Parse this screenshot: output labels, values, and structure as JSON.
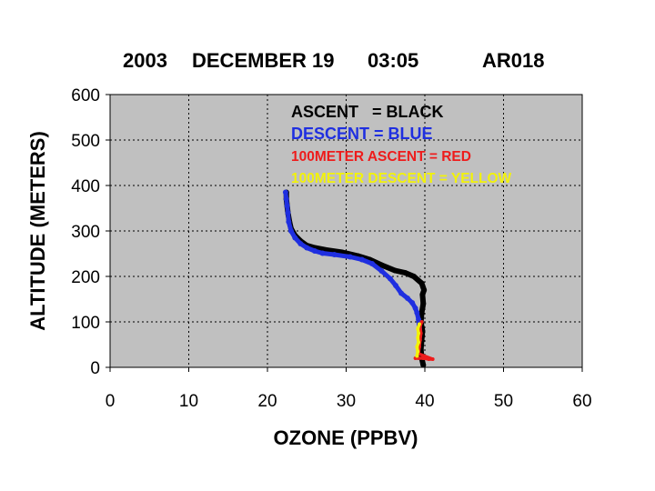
{
  "chart_data": {
    "type": "scatter",
    "title": {
      "year": "2003",
      "date": "DECEMBER 19",
      "time": "03:05",
      "id": "AR018"
    },
    "xlabel": "OZONE (PPBV)",
    "ylabel": "ALTITUDE (METERS)",
    "xlim": [
      0,
      60
    ],
    "ylim": [
      0,
      600
    ],
    "x_ticks": [
      "0",
      "10",
      "20",
      "30",
      "40",
      "50",
      "60"
    ],
    "y_ticks": [
      "0",
      "100",
      "200",
      "300",
      "400",
      "500",
      "600"
    ],
    "grid": true,
    "background": "#c0c0c0",
    "legend": [
      {
        "text": "ASCENT   = BLACK",
        "color": "#000000"
      },
      {
        "text": "DESCENT = BLUE",
        "color": "#1f2fe0"
      },
      {
        "text": "100METER ASCENT = RED",
        "color": "#ee1c1c"
      },
      {
        "text": "100METER DESCENT = YELLOW",
        "color": "#f2f20a"
      }
    ],
    "series": [
      {
        "color": "#000000",
        "points": [
          [
            39.8,
            5
          ],
          [
            39.6,
            20
          ],
          [
            39.5,
            40
          ],
          [
            39.6,
            60
          ],
          [
            39.7,
            80
          ],
          [
            39.5,
            100
          ],
          [
            39.6,
            120
          ],
          [
            39.8,
            140
          ],
          [
            39.7,
            160
          ],
          [
            39.9,
            170
          ],
          [
            39.6,
            185
          ],
          [
            38.6,
            200
          ],
          [
            37.5,
            208
          ],
          [
            36.2,
            213
          ],
          [
            34.5,
            225
          ],
          [
            33.0,
            237
          ],
          [
            31.5,
            245
          ],
          [
            29.5,
            253
          ],
          [
            27.5,
            258
          ],
          [
            26.0,
            263
          ],
          [
            25.0,
            268
          ],
          [
            24.2,
            278
          ],
          [
            23.5,
            290
          ],
          [
            23.0,
            305
          ],
          [
            22.8,
            320
          ],
          [
            22.6,
            340
          ],
          [
            22.5,
            355
          ],
          [
            22.4,
            370
          ],
          [
            22.4,
            385
          ]
        ]
      },
      {
        "color": "#1f2fe0",
        "points": [
          [
            39.3,
            85
          ],
          [
            39.2,
            105
          ],
          [
            39.0,
            120
          ],
          [
            38.8,
            130
          ],
          [
            38.4,
            142
          ],
          [
            37.8,
            152
          ],
          [
            37.0,
            163
          ],
          [
            36.3,
            180
          ],
          [
            35.6,
            195
          ],
          [
            34.5,
            212
          ],
          [
            33.3,
            228
          ],
          [
            32.0,
            237
          ],
          [
            30.5,
            243
          ],
          [
            28.5,
            248
          ],
          [
            27.0,
            251
          ],
          [
            26.0,
            256
          ],
          [
            25.0,
            263
          ],
          [
            24.2,
            272
          ],
          [
            23.5,
            285
          ],
          [
            23.0,
            300
          ],
          [
            22.7,
            320
          ],
          [
            22.6,
            340
          ],
          [
            22.5,
            355
          ],
          [
            22.4,
            370
          ],
          [
            22.3,
            385
          ]
        ]
      },
      {
        "color": "#ee1c1c",
        "points": [
          [
            38.8,
            20
          ],
          [
            39.2,
            20
          ],
          [
            39.8,
            20
          ],
          [
            40.5,
            18
          ],
          [
            41.0,
            18
          ],
          [
            39.2,
            30
          ],
          [
            39.3,
            45
          ],
          [
            39.4,
            60
          ],
          [
            39.5,
            75
          ],
          [
            39.4,
            90
          ],
          [
            39.6,
            100
          ]
        ]
      },
      {
        "color": "#f2f20a",
        "points": [
          [
            39.0,
            25
          ],
          [
            39.1,
            35
          ],
          [
            39.0,
            45
          ],
          [
            39.2,
            55
          ],
          [
            39.1,
            65
          ],
          [
            39.2,
            75
          ],
          [
            39.1,
            85
          ],
          [
            39.3,
            95
          ]
        ]
      }
    ]
  }
}
